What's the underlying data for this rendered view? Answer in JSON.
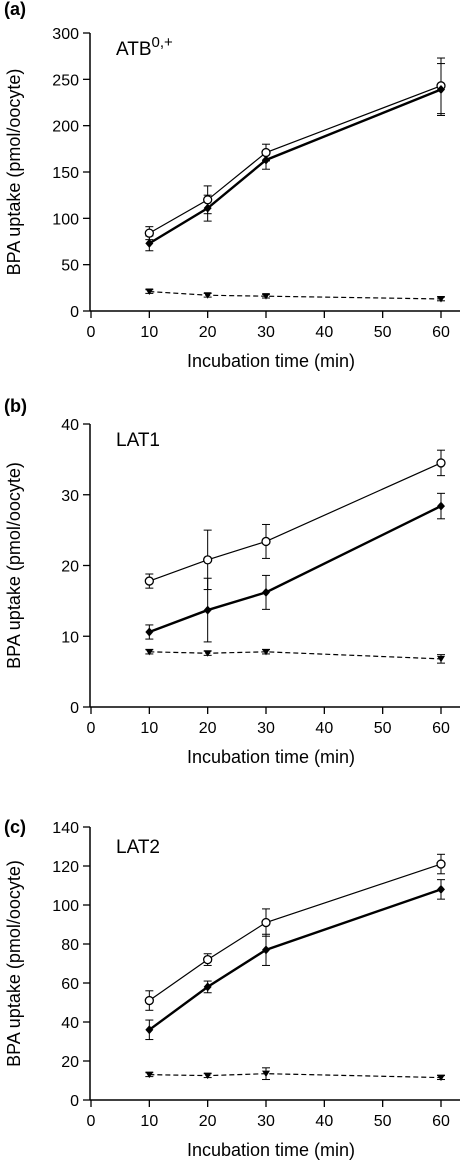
{
  "chart_data": [
    {
      "type": "line",
      "panel_label": "(a)",
      "title_main": "ATB",
      "title_sup": "0,+",
      "xlabel": "Incubation time (min)",
      "ylabel": "BPA uptake (pmol/oocyte)",
      "xlim": [
        0,
        65
      ],
      "ylim": [
        0,
        300
      ],
      "xticks": [
        0,
        10,
        20,
        30,
        40,
        50,
        60
      ],
      "yticks": [
        0,
        50,
        100,
        150,
        200,
        250,
        300
      ],
      "x": [
        10,
        20,
        30,
        60
      ],
      "series": [
        {
          "marker": "open-circle",
          "line": "solid-thin",
          "values": [
            84,
            120,
            171,
            243
          ],
          "errors": [
            7,
            15,
            9,
            30
          ]
        },
        {
          "marker": "filled-diamond",
          "line": "solid-thick",
          "values": [
            73,
            111,
            163,
            239
          ],
          "errors": [
            8,
            14,
            10,
            28
          ]
        },
        {
          "marker": "filled-triangle-down",
          "line": "dashed",
          "values": [
            21,
            17,
            16,
            13
          ],
          "errors": [
            2,
            2,
            2,
            2
          ]
        }
      ]
    },
    {
      "type": "line",
      "panel_label": "(b)",
      "title_main": "LAT1",
      "title_sup": "",
      "xlabel": "Incubation time (min)",
      "ylabel": "BPA uptake (pmol/oocyte)",
      "xlim": [
        0,
        65
      ],
      "ylim": [
        0,
        40
      ],
      "xticks": [
        0,
        10,
        20,
        30,
        40,
        50,
        60
      ],
      "yticks": [
        0,
        10,
        20,
        30,
        40
      ],
      "x": [
        10,
        20,
        30,
        60
      ],
      "series": [
        {
          "marker": "open-circle",
          "line": "solid-thin",
          "values": [
            17.8,
            20.8,
            23.4,
            34.5
          ],
          "errors": [
            1.0,
            4.2,
            2.4,
            1.8
          ]
        },
        {
          "marker": "filled-diamond",
          "line": "solid-thick",
          "values": [
            10.6,
            13.7,
            16.2,
            28.4
          ],
          "errors": [
            1.0,
            4.5,
            2.4,
            1.8
          ]
        },
        {
          "marker": "filled-triangle-down",
          "line": "dashed",
          "values": [
            7.8,
            7.6,
            7.8,
            6.8
          ],
          "errors": [
            0.3,
            0.3,
            0.3,
            0.6
          ]
        }
      ]
    },
    {
      "type": "line",
      "panel_label": "(c)",
      "title_main": "LAT2",
      "title_sup": "",
      "xlabel": "Incubation time (min)",
      "ylabel": "BPA uptake (pmol/oocyte)",
      "xlim": [
        0,
        65
      ],
      "ylim": [
        0,
        140
      ],
      "xticks": [
        0,
        10,
        20,
        30,
        40,
        50,
        60
      ],
      "yticks": [
        0,
        20,
        40,
        60,
        80,
        100,
        120,
        140
      ],
      "x": [
        10,
        20,
        30,
        60
      ],
      "series": [
        {
          "marker": "open-circle",
          "line": "solid-thin",
          "values": [
            51,
            72,
            91,
            121
          ],
          "errors": [
            5,
            3,
            7,
            5
          ]
        },
        {
          "marker": "filled-diamond",
          "line": "solid-thick",
          "values": [
            36,
            58,
            77,
            108
          ],
          "errors": [
            5,
            3,
            8,
            5
          ]
        },
        {
          "marker": "filled-triangle-down",
          "line": "dashed",
          "values": [
            13,
            12.5,
            13.5,
            11.5
          ],
          "errors": [
            1,
            1,
            3,
            1
          ]
        }
      ]
    }
  ]
}
